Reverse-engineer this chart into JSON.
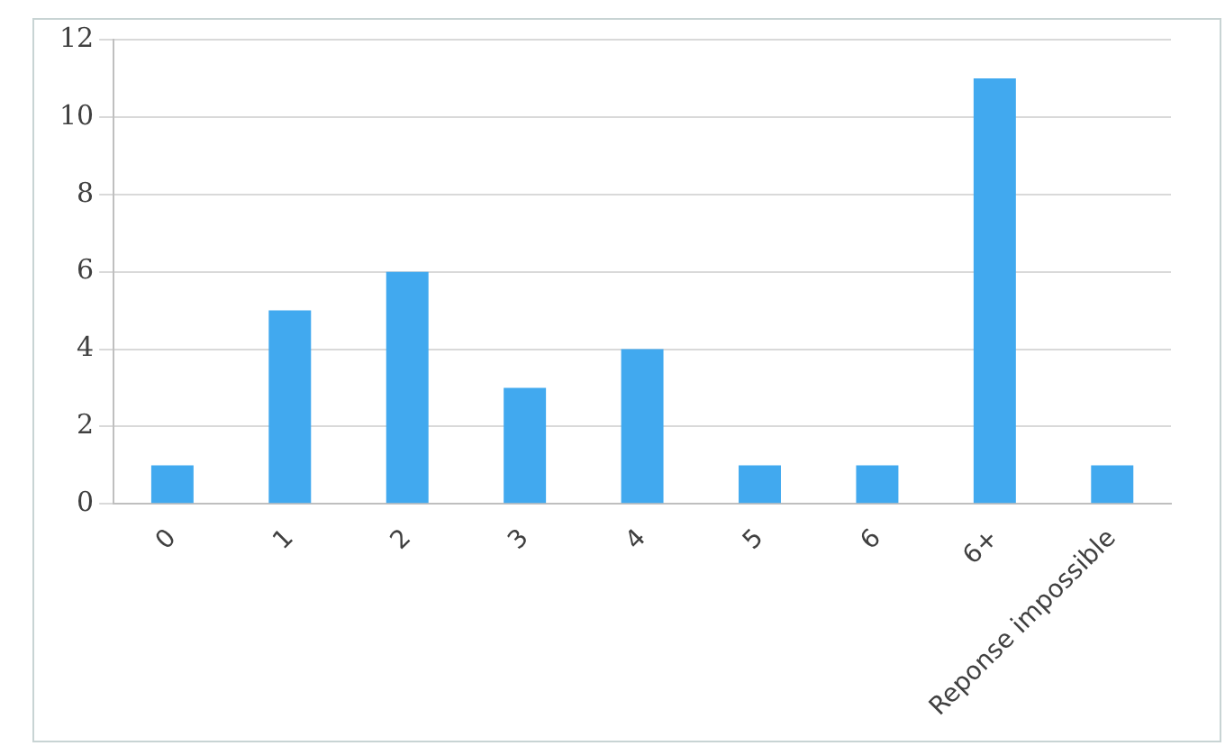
{
  "chart_data": {
    "type": "bar",
    "categories": [
      "0",
      "1",
      "2",
      "3",
      "4",
      "5",
      "6",
      "6+",
      "Reponse impossible"
    ],
    "values": [
      1,
      5,
      6,
      3,
      4,
      1,
      1,
      11,
      1
    ],
    "color": "#41a9ef",
    "ylim": [
      0,
      12
    ],
    "yticks": [
      0,
      2,
      4,
      6,
      8,
      10,
      12
    ],
    "grid": "y"
  }
}
